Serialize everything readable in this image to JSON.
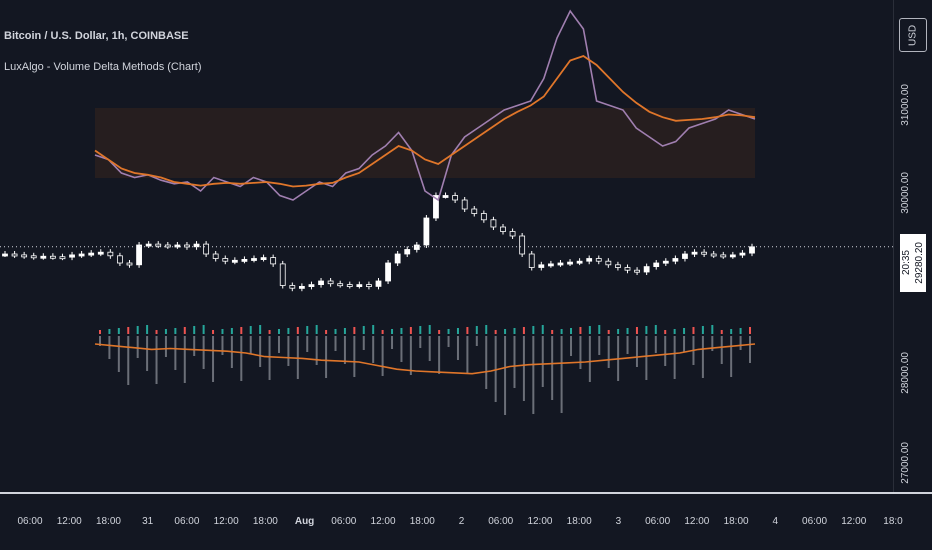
{
  "header": {
    "symbol_title": "Bitcoin / U.S. Dollar, 1h, COINBASE",
    "indicator_title": "LuxAlgo - Volume Delta Methods (Chart)",
    "currency": "USD"
  },
  "price_axis": {
    "labels": [
      "31000.00",
      "30000.00",
      "28000.00",
      "27000.00"
    ],
    "last_price": "29280.20",
    "countdown": "20:35"
  },
  "time_axis": {
    "labels": [
      "06:00",
      "12:00",
      "18:00",
      "31",
      "06:00",
      "12:00",
      "18:00",
      "Aug",
      "06:00",
      "12:00",
      "18:00",
      "2",
      "06:00",
      "12:00",
      "18:00",
      "3",
      "06:00",
      "12:00",
      "18:00",
      "4",
      "06:00",
      "12:00",
      "18:0"
    ]
  },
  "colors": {
    "background": "#131722",
    "text": "#d1d4dc",
    "orange_line": "#e0762a",
    "delta_line": "#a07fb0",
    "up_candle": "#ffffff",
    "down_candle": "#131722",
    "volume_up": "#26a69a",
    "volume_down": "#ef5350",
    "volume_neutral": "#6b6f78",
    "fill_bull": "#3a4a6b",
    "fill_bear": "#4a2a1a"
  },
  "chart_data": {
    "type": "line",
    "price_levels": [
      31000,
      30000,
      28000,
      27000
    ],
    "delta_line": [
      30300,
      30250,
      30100,
      30050,
      30080,
      30020,
      29980,
      30000,
      29900,
      30050,
      30000,
      29950,
      30050,
      30000,
      29850,
      29800,
      29900,
      30000,
      29950,
      30100,
      30150,
      30300,
      30400,
      30550,
      30350,
      29900,
      29800,
      30300,
      30500,
      30600,
      30700,
      30800,
      30850,
      30900,
      31150,
      31600,
      31900,
      31700,
      30900,
      30850,
      30800,
      30600,
      30500,
      30400,
      30450,
      30600,
      30650,
      30700,
      30800,
      30750,
      30700
    ],
    "delta_signal": [
      30350,
      30250,
      30150,
      30100,
      30080,
      30050,
      30000,
      29980,
      29960,
      29980,
      29990,
      29980,
      29990,
      30000,
      29980,
      29950,
      29960,
      29980,
      29990,
      30050,
      30100,
      30200,
      30300,
      30400,
      30350,
      30250,
      30200,
      30300,
      30400,
      30500,
      30600,
      30700,
      30780,
      30850,
      30950,
      31150,
      31350,
      31400,
      31300,
      31150,
      31000,
      30880,
      30780,
      30720,
      30680,
      30690,
      30700,
      30720,
      30750,
      30740,
      30720
    ],
    "candles_close": [
      29200,
      29190,
      29180,
      29170,
      29175,
      29170,
      29165,
      29190,
      29200,
      29210,
      29220,
      29180,
      29100,
      29080,
      29300,
      29310,
      29300,
      29290,
      29300,
      29280,
      29310,
      29200,
      29150,
      29120,
      29130,
      29140,
      29150,
      29160,
      29090,
      28850,
      28820,
      28840,
      28860,
      28900,
      28870,
      28860,
      28850,
      28860,
      28840,
      28900,
      29100,
      29200,
      29250,
      29300,
      29600,
      29850,
      29850,
      29800,
      29700,
      29650,
      29580,
      29500,
      29450,
      29400,
      29200,
      29050,
      29080,
      29090,
      29100,
      29110,
      29120,
      29150,
      29120,
      29080,
      29050,
      29020,
      29000,
      29060,
      29100,
      29120,
      29150,
      29200,
      29220,
      29200,
      29190,
      29180,
      29190,
      29210,
      29280
    ],
    "volume_delta_signal": [
      28200,
      28180,
      28160,
      28140,
      28150,
      28140,
      28130,
      28120,
      28100,
      28060,
      28050,
      28040,
      28020,
      28010,
      28000,
      27960,
      27920,
      27900,
      27890,
      27880,
      27870,
      27900,
      27950,
      27970,
      27980,
      27990,
      28000,
      28020,
      28040,
      28060,
      28080,
      28100,
      28140,
      28160,
      28180,
      28200
    ]
  }
}
